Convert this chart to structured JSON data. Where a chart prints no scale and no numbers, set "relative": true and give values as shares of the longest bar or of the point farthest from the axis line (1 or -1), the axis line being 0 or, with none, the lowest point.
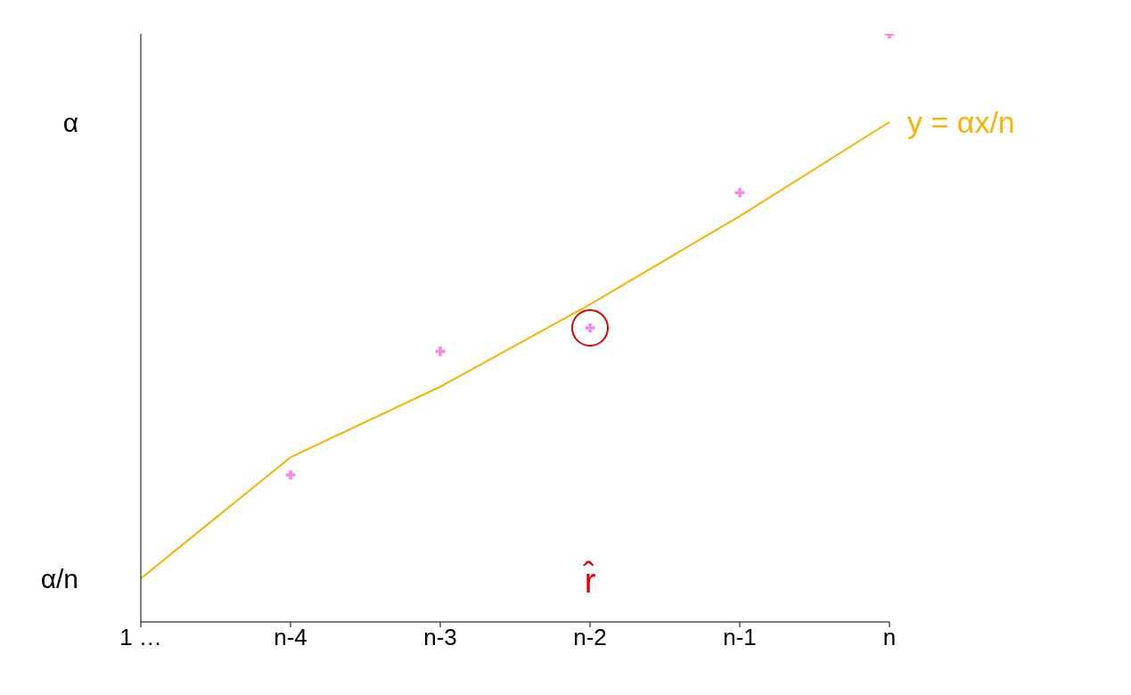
{
  "chart_data": {
    "type": "scatter",
    "categories": [
      "1 …",
      "n-4",
      "n-3",
      "n-2",
      "n-1",
      "n"
    ],
    "series": [
      {
        "type": "line",
        "color": "#f5b400",
        "marker": "none",
        "values": [
          0.074,
          0.28,
          0.4,
          0.54,
          0.69,
          0.85
        ]
      },
      {
        "color": "#f08ce8",
        "marker": "cross",
        "values": [
          null,
          0.25,
          0.46,
          0.5,
          0.73,
          1.0
        ]
      }
    ],
    "relative": true,
    "annotations": [
      {
        "text": "y = αx/n",
        "x": "n",
        "y": 0.85
      },
      "r̂",
      "α",
      "α/n"
    ]
  }
}
